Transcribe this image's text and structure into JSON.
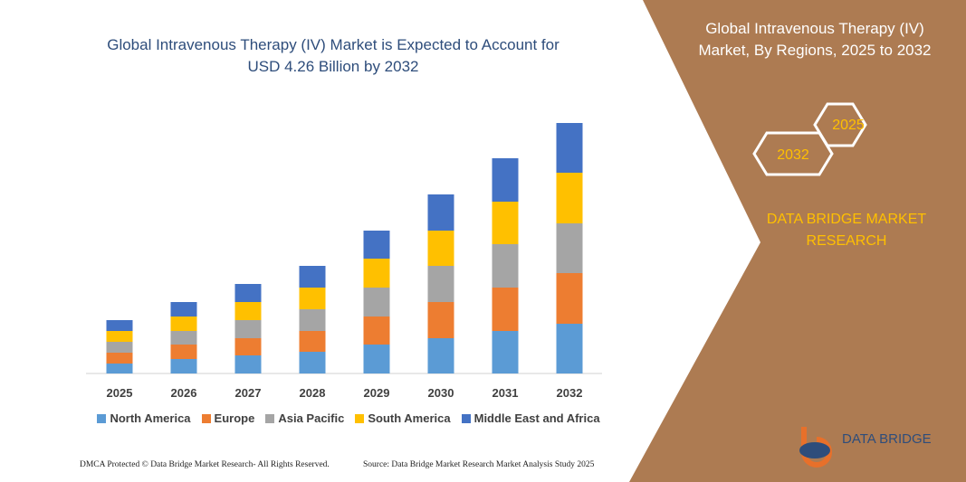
{
  "chart_data": {
    "type": "bar",
    "stacked": true,
    "title": "Global Intravenous Therapy (IV) Market is Expected to Account for USD 4.26 Billion by 2032",
    "categories": [
      "2025",
      "2026",
      "2027",
      "2028",
      "2029",
      "2030",
      "2031",
      "2032"
    ],
    "series": [
      {
        "name": "North America",
        "color": "#5b9bd5",
        "values": [
          11,
          16,
          20,
          24,
          32,
          39,
          47,
          55
        ]
      },
      {
        "name": "Europe",
        "color": "#ed7d31",
        "values": [
          12,
          16,
          19,
          23,
          31,
          40,
          48,
          56
        ]
      },
      {
        "name": "Asia Pacific",
        "color": "#a5a5a5",
        "values": [
          12,
          15,
          20,
          24,
          32,
          40,
          48,
          55
        ]
      },
      {
        "name": "South America",
        "color": "#ffc000",
        "values": [
          12,
          16,
          20,
          24,
          32,
          39,
          47,
          56
        ]
      },
      {
        "name": "Middle East and Africa",
        "color": "#4472c4",
        "values": [
          12,
          16,
          20,
          24,
          31,
          40,
          48,
          55
        ]
      }
    ]
  },
  "side_panel": {
    "title": "Global Intravenous Therapy (IV) Market, By Regions, 2025 to 2032",
    "hexagon_right": "2025",
    "hexagon_left": "2032",
    "tagline": "DATA BRIDGE MARKET RESEARCH",
    "logo": "DATA BRIDGE"
  },
  "footer": {
    "left": "DMCA Protected © Data Bridge Market Research- All Rights Reserved.",
    "right": "Source: Data Bridge Market Research Market Analysis Study 2025"
  }
}
